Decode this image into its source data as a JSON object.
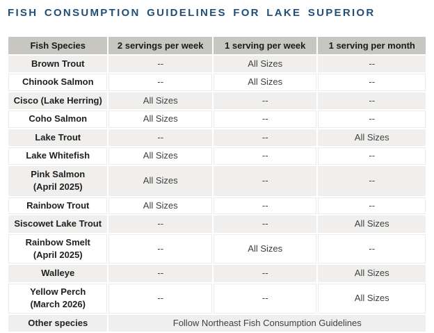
{
  "title": "FISH CONSUMPTION GUIDELINES FOR LAKE SUPERIOR",
  "colors": {
    "title_blue": "#1F4E79",
    "header_bg": "#C8C6C0",
    "stripe_bg": "#F0EFED",
    "row_white": "#FFFFFF",
    "grid": "#EDEBE7",
    "outer_border": "#C9C7C3",
    "species_text": "#1F1F1F",
    "value_text": "#404040"
  },
  "table": {
    "headers": [
      "Fish Species",
      "2 servings per week",
      "1 serving per week",
      "1 serving per month"
    ],
    "rows": [
      {
        "species": [
          "Brown Trout"
        ],
        "cells": [
          "--",
          "All Sizes",
          "--"
        ]
      },
      {
        "species": [
          "Chinook Salmon"
        ],
        "cells": [
          "--",
          "All Sizes",
          "--"
        ]
      },
      {
        "species": [
          "Cisco (Lake Herring)"
        ],
        "cells": [
          "All Sizes",
          "--",
          "--"
        ]
      },
      {
        "species": [
          "Coho Salmon"
        ],
        "cells": [
          "All Sizes",
          "--",
          "--"
        ]
      },
      {
        "species": [
          "Lake Trout"
        ],
        "cells": [
          "--",
          "--",
          "All Sizes"
        ]
      },
      {
        "species": [
          "Lake Whitefish"
        ],
        "cells": [
          "All Sizes",
          "--",
          "--"
        ]
      },
      {
        "species": [
          "Pink Salmon",
          "(April 2025)"
        ],
        "cells": [
          "All Sizes",
          "--",
          "--"
        ]
      },
      {
        "species": [
          "Rainbow Trout"
        ],
        "cells": [
          "All Sizes",
          "--",
          "--"
        ]
      },
      {
        "species": [
          "Siscowet Lake Trout"
        ],
        "cells": [
          "--",
          "--",
          "All Sizes"
        ]
      },
      {
        "species": [
          "Rainbow Smelt",
          "(April 2025)"
        ],
        "cells": [
          "--",
          "All Sizes",
          "--"
        ]
      },
      {
        "species": [
          "Walleye"
        ],
        "cells": [
          "--",
          "--",
          "All Sizes"
        ]
      },
      {
        "species": [
          "Yellow Perch",
          "(March 2026)"
        ],
        "cells": [
          "--",
          "--",
          "All Sizes"
        ]
      },
      {
        "species": [
          "Other species"
        ],
        "cells": [
          "Follow Northeast Fish Consumption Guidelines"
        ],
        "colspan": 3
      }
    ]
  }
}
